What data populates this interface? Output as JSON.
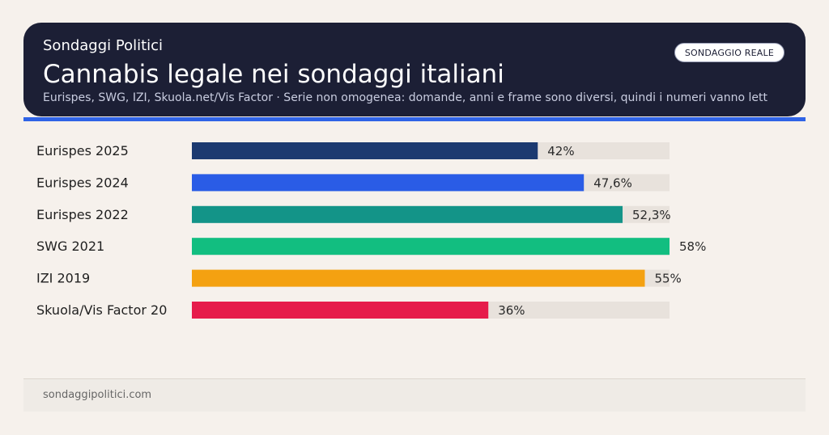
{
  "header": {
    "badge": "SONDAGGIO REALE",
    "kicker": "Sondaggi Politici",
    "title": "Cannabis legale nei sondaggi italiani",
    "subtitle": "Eurispes, SWG, IZI, Skuola.net/Vis Factor · Serie non omogenea: domande, anni e frame sono diversi, quindi i numeri vanno lett"
  },
  "chart_data": {
    "type": "bar",
    "orientation": "horizontal",
    "title": "Cannabis legale nei sondaggi italiani",
    "xlabel": "",
    "ylabel": "",
    "xlim": [
      0,
      58
    ],
    "grid": false,
    "legend": "none",
    "categories": [
      "Eurispes 2025",
      "Eurispes 2024",
      "Eurispes 2022",
      "SWG 2021",
      "IZI 2019",
      "Skuola/Vis Factor 20"
    ],
    "values": [
      42,
      47.6,
      52.3,
      58,
      55,
      36
    ],
    "labels": [
      "42%",
      "47,6%",
      "52,3%",
      "58%",
      "55%",
      "36%"
    ],
    "colors": [
      "#1c3a70",
      "#2a5ce6",
      "#139488",
      "#12be80",
      "#f4a111",
      "#e61c4b"
    ],
    "track_color": "#e8e2dc"
  },
  "footer": {
    "site": "sondaggipolitici.com"
  }
}
